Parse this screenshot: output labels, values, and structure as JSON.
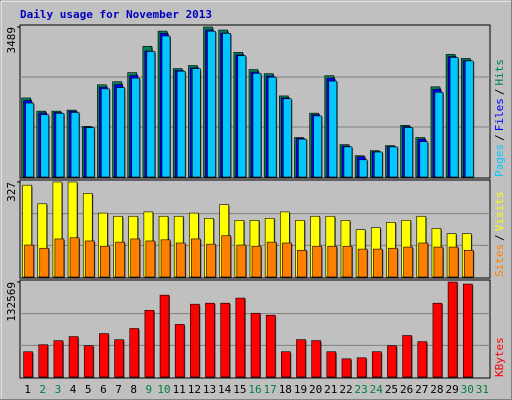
{
  "chart_data": [
    {
      "type": "bar",
      "title": "Daily usage for November 2013",
      "categories": [
        "1",
        "2",
        "3",
        "4",
        "5",
        "6",
        "7",
        "8",
        "9",
        "10",
        "11",
        "12",
        "13",
        "14",
        "15",
        "16",
        "17",
        "18",
        "19",
        "20",
        "21",
        "22",
        "23",
        "24",
        "25",
        "26",
        "27",
        "28",
        "29",
        "30",
        "31"
      ],
      "ylim": [
        0,
        3489
      ],
      "yticks": [
        3489
      ],
      "legend_separator": "/",
      "series": [
        {
          "name": "Hits",
          "color": "#00805c",
          "values": [
            1839,
            1532,
            1532,
            1556,
            1179,
            2145,
            2216,
            2428,
            3041,
            3394,
            2522,
            2593,
            3489,
            3418,
            2899,
            2499,
            2404,
            1886,
            919,
            1485,
            2357,
            754,
            495,
            613,
            731,
            1202,
            919,
            2098,
            2852,
            2758,
            null
          ]
        },
        {
          "name": "Files",
          "color": "#0000ff",
          "values": [
            1780,
            1490,
            1500,
            1530,
            1160,
            2090,
            2150,
            2360,
            2930,
            3340,
            2480,
            2540,
            3420,
            3350,
            2840,
            2440,
            2350,
            1840,
            900,
            1450,
            2300,
            720,
            470,
            590,
            710,
            1170,
            880,
            2040,
            2800,
            2710,
            null
          ]
        },
        {
          "name": "Pages",
          "color": "#00c8ff",
          "values": [
            1720,
            1450,
            1480,
            1500,
            1150,
            2050,
            2080,
            2300,
            2920,
            3280,
            2460,
            2520,
            3390,
            3340,
            2820,
            2410,
            2320,
            1820,
            880,
            1420,
            2230,
            700,
            400,
            580,
            700,
            1150,
            820,
            1970,
            2780,
            2700,
            null
          ]
        }
      ]
    },
    {
      "type": "bar",
      "categories": [
        "1",
        "2",
        "3",
        "4",
        "5",
        "6",
        "7",
        "8",
        "9",
        "10",
        "11",
        "12",
        "13",
        "14",
        "15",
        "16",
        "17",
        "18",
        "19",
        "20",
        "21",
        "22",
        "23",
        "24",
        "25",
        "26",
        "27",
        "28",
        "29",
        "30",
        "31"
      ],
      "ylim": [
        0,
        327
      ],
      "yticks": [
        327
      ],
      "legend_separator": "/",
      "series": [
        {
          "name": "Visits",
          "color": "#ffff00",
          "values": [
            316,
            252,
            327,
            327,
            288,
            220,
            209,
            209,
            224,
            209,
            209,
            220,
            202,
            249,
            195,
            195,
            202,
            224,
            195,
            209,
            209,
            195,
            163,
            170,
            188,
            195,
            209,
            167,
            149,
            149,
            null
          ]
        },
        {
          "name": "Sites",
          "color": "#ff8000",
          "values": [
            110,
            99,
            131,
            135,
            124,
            106,
            120,
            131,
            124,
            128,
            117,
            131,
            113,
            142,
            110,
            106,
            120,
            117,
            92,
            106,
            106,
            106,
            96,
            96,
            99,
            103,
            117,
            103,
            103,
            92,
            null
          ]
        }
      ]
    },
    {
      "type": "bar",
      "categories": [
        "1",
        "2",
        "3",
        "4",
        "5",
        "6",
        "7",
        "8",
        "9",
        "10",
        "11",
        "12",
        "13",
        "14",
        "15",
        "16",
        "17",
        "18",
        "19",
        "20",
        "21",
        "22",
        "23",
        "24",
        "25",
        "26",
        "27",
        "28",
        "29",
        "30",
        "31"
      ],
      "category_colors": [
        "#000000",
        "#008040",
        "#008040",
        "#000000",
        "#000000",
        "#000000",
        "#000000",
        "#000000",
        "#008040",
        "#008040",
        "#000000",
        "#000000",
        "#000000",
        "#000000",
        "#000000",
        "#008040",
        "#008040",
        "#000000",
        "#000000",
        "#000000",
        "#000000",
        "#000000",
        "#008040",
        "#008040",
        "#000000",
        "#000000",
        "#000000",
        "#000000",
        "#000000",
        "#008040",
        "#008040"
      ],
      "ylim": [
        0,
        132569
      ],
      "yticks": [
        132569
      ],
      "series": [
        {
          "name": "KBytes",
          "color": "#ff0000",
          "values": [
            35275,
            45000,
            50800,
            56400,
            43700,
            60600,
            52100,
            67700,
            93100,
            114200,
            73400,
            101600,
            103000,
            103000,
            110100,
            89000,
            86200,
            35300,
            52200,
            50800,
            35300,
            25400,
            26800,
            35300,
            43700,
            57900,
            49400,
            103000,
            132569,
            129700,
            null
          ]
        }
      ]
    }
  ]
}
